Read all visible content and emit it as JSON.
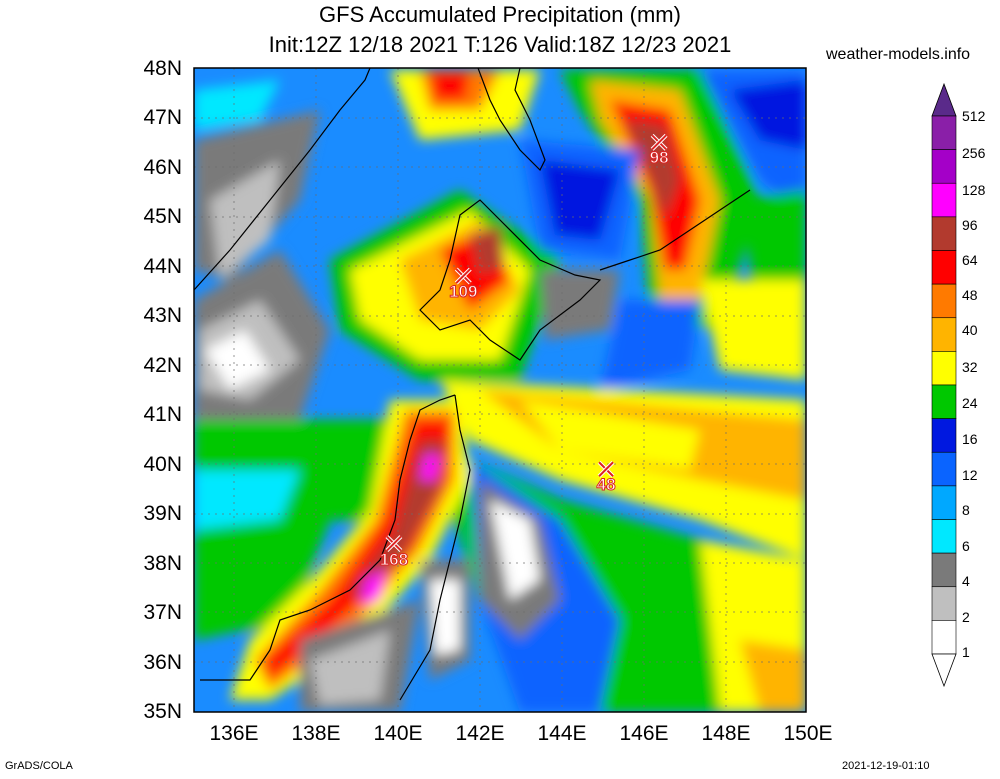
{
  "title": {
    "line1": "GFS Accumulated Precipitation (mm)",
    "line2": "Init:12Z 12/18 2021 T:126 Valid:18Z 12/23 2021"
  },
  "brand": "weather-models.info",
  "footer": {
    "left": "GrADS/COLA",
    "right": "2021-12-19-01:10"
  },
  "axes": {
    "lat_labels": [
      "48N",
      "47N",
      "46N",
      "45N",
      "44N",
      "43N",
      "42N",
      "41N",
      "40N",
      "39N",
      "38N",
      "37N",
      "36N",
      "35N"
    ],
    "lon_labels": [
      "136E",
      "138E",
      "140E",
      "142E",
      "144E",
      "146E",
      "148E",
      "150E"
    ]
  },
  "legend": {
    "labels": [
      "512",
      "256",
      "128",
      "96",
      "64",
      "48",
      "40",
      "32",
      "24",
      "16",
      "12",
      "8",
      "6",
      "4",
      "2",
      "1"
    ],
    "colors": [
      "#8a1fa8",
      "#a400c8",
      "#ff00ff",
      "#b23a2e",
      "#ff0000",
      "#ff7a00",
      "#ffb400",
      "#ffff00",
      "#00c800",
      "#0018e0",
      "#0a64ff",
      "#00a8ff",
      "#00e8ff",
      "#7a7a7a",
      "#bfbfbf",
      "#ffffff"
    ]
  },
  "markers": [
    {
      "label": "98",
      "lon": 146.4,
      "lat": 46.5
    },
    {
      "label": "109",
      "lon": 141.6,
      "lat": 43.8
    },
    {
      "label": "48",
      "lon": 145.1,
      "lat": 39.9
    },
    {
      "label": "168",
      "lon": 139.9,
      "lat": 38.4
    }
  ]
}
